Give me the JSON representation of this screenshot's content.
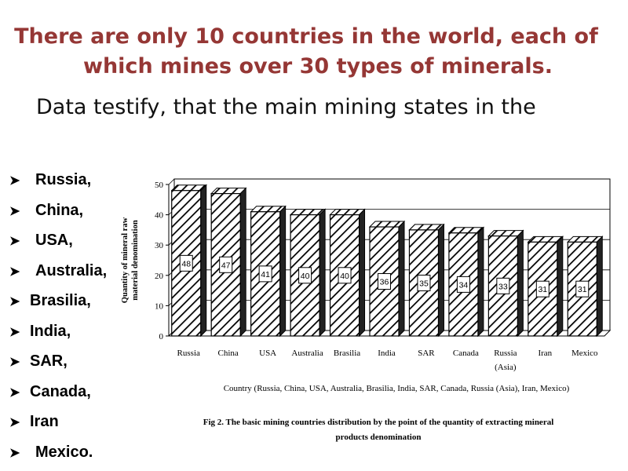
{
  "slide": {
    "title_line1": "There are only 10 countries in the world, each of",
    "title_line2": "which mines over 30 types of minerals.",
    "subtitle": "Data testify, that the main mining states in the"
  },
  "list": {
    "items": [
      {
        "label": "Russia,",
        "indent": true
      },
      {
        "label": "China,",
        "indent": true
      },
      {
        "label": "USA,",
        "indent": true
      },
      {
        "label": "Australia,",
        "indent": true
      },
      {
        "label": "Brasilia,",
        "indent": false
      },
      {
        "label": "India,",
        "indent": false
      },
      {
        "label": "SAR,",
        "indent": false
      },
      {
        "label": "Canada,",
        "indent": false
      },
      {
        "label": "Iran",
        "indent": false
      },
      {
        "label": "Mexico.",
        "indent": true
      }
    ]
  },
  "colors": {
    "title": "#953735",
    "bar_hatch": "#000000",
    "background": "#ffffff"
  },
  "chart_data": {
    "type": "bar",
    "categories": [
      "Russia",
      "China",
      "USA",
      "Australia",
      "Brasilia",
      "India",
      "SAR",
      "Canada",
      "Russia\n(Asia)",
      "Iran",
      "Mexico"
    ],
    "values": [
      48,
      47,
      41,
      40,
      40,
      36,
      35,
      34,
      33,
      31,
      31
    ],
    "data_labels": [
      "48",
      "47",
      "41",
      "40",
      "40",
      "36",
      "35",
      "34",
      "33",
      "31",
      "31"
    ],
    "ylabel_line1": "Quantity of mineral raw",
    "ylabel_line2": "material denomination",
    "xlabel": "Country (Russia, China, USA, Australia, Brasilia, India, SAR, Canada, Russia (Asia), Iran, Mexico)",
    "caption_line1": "Fig 2. The basic mining countries distribution by the point of the quantity of extracting mineral",
    "caption_line2": "products denomination",
    "ylim": [
      0,
      50
    ],
    "yticks": [
      0,
      10,
      20,
      30,
      40,
      50
    ],
    "grid": true,
    "style": "3d-hatched-bars"
  }
}
